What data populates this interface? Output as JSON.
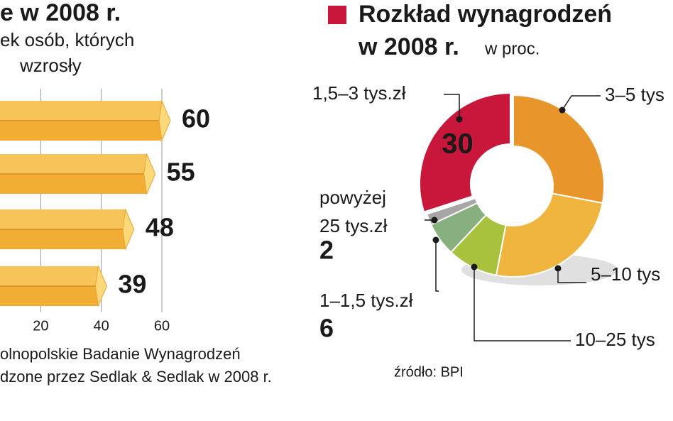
{
  "chart_data": [
    {
      "type": "bar",
      "title": "e w 2008 r.",
      "subtitle": [
        "ek osób, których",
        "wzrosły"
      ],
      "values": [
        60,
        55,
        48,
        39
      ],
      "color": "#f2ad35",
      "xlim": [
        0,
        60
      ],
      "xticks": [
        20,
        40,
        60
      ],
      "grid": true,
      "notes": [
        "olnopolskie Badanie Wynagrodzeń",
        "dzone przez Sedlak & Sedlak w 2008 r."
      ]
    },
    {
      "type": "donut",
      "title": [
        "Rozkład wynagrodzeń",
        "w 2008 r."
      ],
      "unit": "w proc.",
      "title_color": "#c8173a",
      "categories": [
        "1,5–3 tys.zł",
        "3–5 tys",
        "5–10 tys",
        "10–25 tys",
        "1–1,5 tys.zł",
        "powyżej 25 tys.zł"
      ],
      "values": [
        30,
        28,
        25,
        9,
        6,
        2
      ],
      "colors": [
        "#c8173a",
        "#e8962c",
        "#f0b53f",
        "#a9c23e",
        "#88b07e",
        "#a6a6a6"
      ],
      "source": "źródło: BPI"
    }
  ]
}
